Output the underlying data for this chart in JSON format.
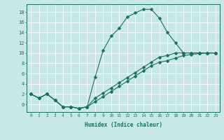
{
  "xlabel": "Humidex (Indice chaleur)",
  "bg_color": "#c8e8e8",
  "line_color": "#1a7060",
  "grid_color": "#ffffff",
  "xlim": [
    -0.5,
    23.5
  ],
  "ylim": [
    -1.5,
    19.5
  ],
  "xticks": [
    0,
    1,
    2,
    3,
    4,
    5,
    6,
    7,
    8,
    9,
    10,
    11,
    12,
    13,
    14,
    15,
    16,
    17,
    18,
    19,
    20,
    21,
    22,
    23
  ],
  "yticks": [
    0,
    2,
    4,
    6,
    8,
    10,
    12,
    14,
    16,
    18
  ],
  "line1_x": [
    0,
    1,
    2,
    3,
    4,
    5,
    6,
    7,
    8,
    9,
    10,
    11,
    12,
    13,
    14,
    15,
    16,
    17,
    18,
    19,
    20,
    21,
    22,
    23
  ],
  "line1_y": [
    2.0,
    1.2,
    2.0,
    0.8,
    -0.5,
    -0.5,
    -0.8,
    -0.5,
    5.3,
    10.5,
    13.3,
    14.8,
    17.0,
    17.8,
    18.5,
    18.5,
    16.8,
    14.0,
    12.0,
    10.0,
    10.0,
    10.0,
    10.0,
    10.0
  ],
  "line2_x": [
    0,
    1,
    2,
    3,
    4,
    5,
    6,
    7,
    8,
    9,
    10,
    11,
    12,
    13,
    14,
    15,
    16,
    17,
    18,
    19,
    20,
    21,
    22,
    23
  ],
  "line2_y": [
    2.0,
    1.2,
    2.0,
    0.8,
    -0.5,
    -0.5,
    -0.8,
    -0.5,
    1.2,
    2.2,
    3.2,
    4.2,
    5.2,
    6.2,
    7.2,
    8.2,
    9.2,
    9.5,
    10.0,
    10.0,
    10.0,
    10.0,
    10.0,
    10.0
  ],
  "line3_x": [
    0,
    1,
    2,
    3,
    4,
    5,
    6,
    7,
    8,
    9,
    10,
    11,
    12,
    13,
    14,
    15,
    16,
    17,
    18,
    19,
    20,
    21,
    22,
    23
  ],
  "line3_y": [
    2.0,
    1.2,
    2.0,
    0.8,
    -0.5,
    -0.5,
    -0.8,
    -0.5,
    0.5,
    1.5,
    2.5,
    3.5,
    4.5,
    5.5,
    6.5,
    7.5,
    8.2,
    8.5,
    9.0,
    9.5,
    9.7,
    9.9,
    10.0,
    10.0
  ]
}
